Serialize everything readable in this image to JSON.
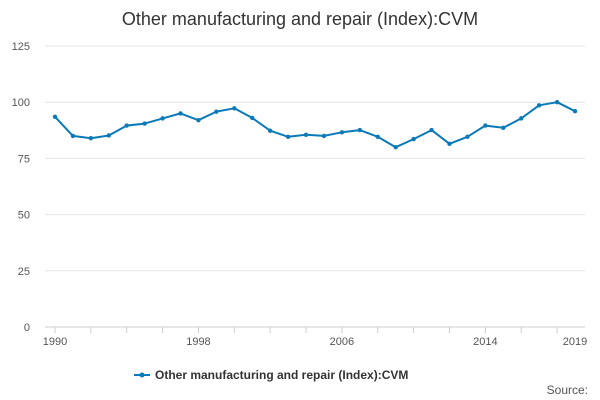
{
  "chart_data": {
    "type": "line",
    "title": "Other manufacturing and repair (Index):CVM",
    "xlabel": "",
    "ylabel": "",
    "x": [
      1990,
      1991,
      1992,
      1993,
      1994,
      1995,
      1996,
      1997,
      1998,
      1999,
      2000,
      2001,
      2002,
      2003,
      2004,
      2005,
      2006,
      2007,
      2008,
      2009,
      2010,
      2011,
      2012,
      2013,
      2014,
      2015,
      2016,
      2017,
      2018,
      2019
    ],
    "xlim": [
      1990,
      2019
    ],
    "ylim": [
      0,
      125
    ],
    "x_ticks": [
      "1990",
      "1998",
      "2006",
      "2014",
      "2019"
    ],
    "y_ticks": [
      "0",
      "25",
      "50",
      "75",
      "100",
      "125"
    ],
    "grid": true,
    "legend_position": "bottom",
    "series": [
      {
        "name": "Other manufacturing and repair (Index):CVM",
        "color": "#0b7ab8",
        "values": [
          93.5,
          85,
          84,
          85.2,
          89.6,
          90.5,
          92.8,
          95,
          92,
          95.8,
          97.3,
          93,
          87.3,
          84.6,
          85.5,
          85,
          86.6,
          87.6,
          84.6,
          80,
          83.6,
          87.6,
          81.5,
          84.6,
          89.6,
          88.6,
          92.8,
          98.6,
          100,
          96
        ]
      }
    ]
  },
  "footer": {
    "source_label": "Source:"
  }
}
